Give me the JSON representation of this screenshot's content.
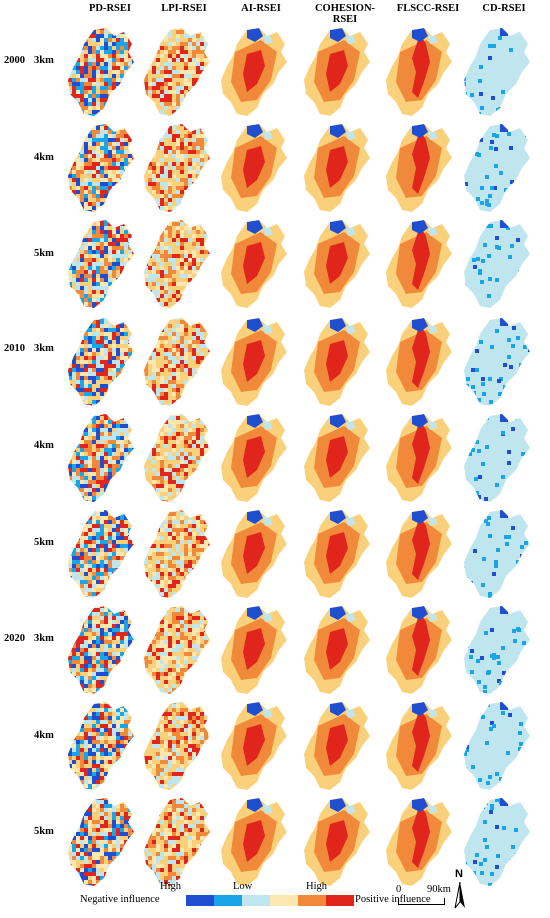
{
  "columns": [
    "PD-RSEI",
    "LPI-RSEI",
    "AI-RSEI",
    "COHESION-RSEI",
    "FLSCC-RSEI",
    "CD-RSEI"
  ],
  "years": [
    "2000",
    "2010",
    "2020"
  ],
  "scales": [
    "3km",
    "4km",
    "5km"
  ],
  "legend": {
    "negative_label": "Negative influence",
    "positive_label": "Positive influence",
    "high_left": "High",
    "low_mid": "Low",
    "high_right": "High",
    "colors": [
      "#1f4fd0",
      "#1aa5e8",
      "#bfe6ee",
      "#fde7b0",
      "#f08a3a",
      "#e0261c"
    ]
  },
  "scalebar": {
    "zero": "0",
    "dist": "90",
    "unit": "km"
  },
  "north": "N",
  "palette": {
    "dark_blue": "#1f4fd0",
    "blue": "#1aa5e8",
    "light_blue": "#bfe6ee",
    "pale_yellow": "#fde7b0",
    "yellow": "#fbd07a",
    "orange": "#f08a3a",
    "red": "#e0261c"
  }
}
